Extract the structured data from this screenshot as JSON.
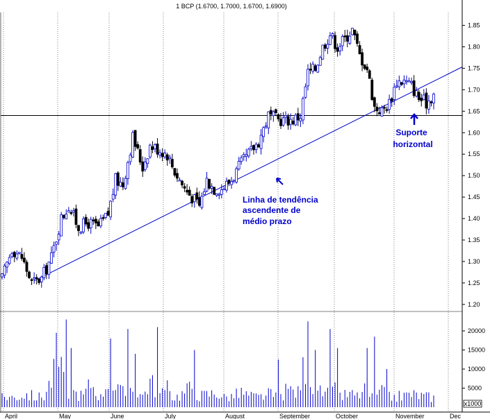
{
  "chart_data": {
    "type": "candlestick",
    "title": "1 BCP (1.6700, 1.7000, 1.6700, 1.6900)",
    "price_axis": {
      "ticks": [
        "1.85",
        "1.80",
        "1.75",
        "1.70",
        "1.65",
        "1.60",
        "1.55",
        "1.50",
        "1.45",
        "1.40",
        "1.35",
        "1.30",
        "1.25",
        "1.20"
      ],
      "ylim": [
        1.19,
        1.88
      ]
    },
    "volume_axis": {
      "ticks": [
        "20000",
        "15000",
        "10000",
        "5000"
      ],
      "unit_label": "x1000",
      "ylim": [
        0,
        24000
      ]
    },
    "x_axis": {
      "months": [
        "April",
        "May",
        "June",
        "July",
        "August",
        "September",
        "October",
        "November",
        "Dec"
      ],
      "trading_days": 175
    },
    "horizontal_support_level": 1.64,
    "trendline": {
      "start_day": 13,
      "start_value": 1.255,
      "end_day": 175,
      "end_value": 1.72
    },
    "annotations": {
      "trend": {
        "lines": [
          "Linha de tendência",
          "ascendente de",
          "médio prazo"
        ]
      },
      "support": {
        "lines": [
          "Suporte",
          "horizontal"
        ]
      }
    },
    "price_path": [
      [
        0,
        1.26
      ],
      [
        4,
        1.33
      ],
      [
        8,
        1.31
      ],
      [
        12,
        1.25
      ],
      [
        16,
        1.26
      ],
      [
        20,
        1.31
      ],
      [
        24,
        1.4
      ],
      [
        27,
        1.43
      ],
      [
        31,
        1.38
      ],
      [
        35,
        1.39
      ],
      [
        39,
        1.38
      ],
      [
        43,
        1.41
      ],
      [
        46,
        1.49
      ],
      [
        49,
        1.48
      ],
      [
        53,
        1.59
      ],
      [
        57,
        1.52
      ],
      [
        60,
        1.57
      ],
      [
        64,
        1.56
      ],
      [
        67,
        1.55
      ],
      [
        70,
        1.51
      ],
      [
        74,
        1.47
      ],
      [
        77,
        1.45
      ],
      [
        80,
        1.43
      ],
      [
        83,
        1.49
      ],
      [
        86,
        1.47
      ],
      [
        89,
        1.47
      ],
      [
        93,
        1.49
      ],
      [
        96,
        1.52
      ],
      [
        100,
        1.55
      ],
      [
        104,
        1.58
      ],
      [
        108,
        1.64
      ],
      [
        112,
        1.63
      ],
      [
        115,
        1.63
      ],
      [
        118,
        1.63
      ],
      [
        121,
        1.64
      ],
      [
        124,
        1.74
      ],
      [
        127,
        1.75
      ],
      [
        130,
        1.8
      ],
      [
        133,
        1.83
      ],
      [
        136,
        1.8
      ],
      [
        139,
        1.82
      ],
      [
        142,
        1.84
      ],
      [
        145,
        1.78
      ],
      [
        148,
        1.75
      ],
      [
        151,
        1.66
      ],
      [
        154,
        1.65
      ],
      [
        157,
        1.67
      ],
      [
        160,
        1.72
      ],
      [
        163,
        1.72
      ],
      [
        166,
        1.71
      ],
      [
        169,
        1.68
      ],
      [
        172,
        1.67
      ],
      [
        175,
        1.69
      ]
    ],
    "volume_path": [
      [
        0,
        3500
      ],
      [
        5,
        3000
      ],
      [
        10,
        4000
      ],
      [
        14,
        3000
      ],
      [
        17,
        3500
      ],
      [
        20,
        8500
      ],
      [
        23,
        13500
      ],
      [
        26,
        5000
      ],
      [
        29,
        4500
      ],
      [
        33,
        3500
      ],
      [
        36,
        7500
      ],
      [
        40,
        3000
      ],
      [
        43,
        9000
      ],
      [
        46,
        5500
      ],
      [
        50,
        4000
      ],
      [
        53,
        7000
      ],
      [
        57,
        3500
      ],
      [
        60,
        8000
      ],
      [
        64,
        4000
      ],
      [
        67,
        5500
      ],
      [
        70,
        3000
      ],
      [
        74,
        4500
      ],
      [
        77,
        6500
      ],
      [
        80,
        3500
      ],
      [
        84,
        4000
      ],
      [
        87,
        4500
      ],
      [
        90,
        3000
      ],
      [
        94,
        3500
      ],
      [
        97,
        4500
      ],
      [
        100,
        3500
      ],
      [
        104,
        3000
      ],
      [
        108,
        4000
      ],
      [
        112,
        3000
      ],
      [
        116,
        5500
      ],
      [
        120,
        4500
      ],
      [
        123,
        14500
      ],
      [
        126,
        7000
      ],
      [
        129,
        4500
      ],
      [
        132,
        4000
      ],
      [
        135,
        5000
      ],
      [
        138,
        3500
      ],
      [
        141,
        4000
      ],
      [
        144,
        3500
      ],
      [
        147,
        5000
      ],
      [
        150,
        3000
      ],
      [
        154,
        4500
      ],
      [
        158,
        3000
      ],
      [
        162,
        3500
      ],
      [
        166,
        4000
      ],
      [
        170,
        3500
      ],
      [
        175,
        3000
      ]
    ],
    "volume_spikes": [
      [
        22,
        19500
      ],
      [
        26,
        23000
      ],
      [
        28,
        15500
      ],
      [
        44,
        18000
      ],
      [
        51,
        20500
      ],
      [
        54,
        14000
      ],
      [
        63,
        21000
      ],
      [
        78,
        15000
      ],
      [
        112,
        12500
      ],
      [
        124,
        22500
      ],
      [
        127,
        15000
      ],
      [
        133,
        20500
      ],
      [
        136,
        15500
      ],
      [
        148,
        15500
      ],
      [
        151,
        18500
      ],
      [
        156,
        10000
      ]
    ],
    "colors": {
      "up": "#0000cc",
      "down": "#000000",
      "trendline": "#0000cc",
      "support_line": "#000000",
      "annotation": "#0000cc"
    }
  }
}
